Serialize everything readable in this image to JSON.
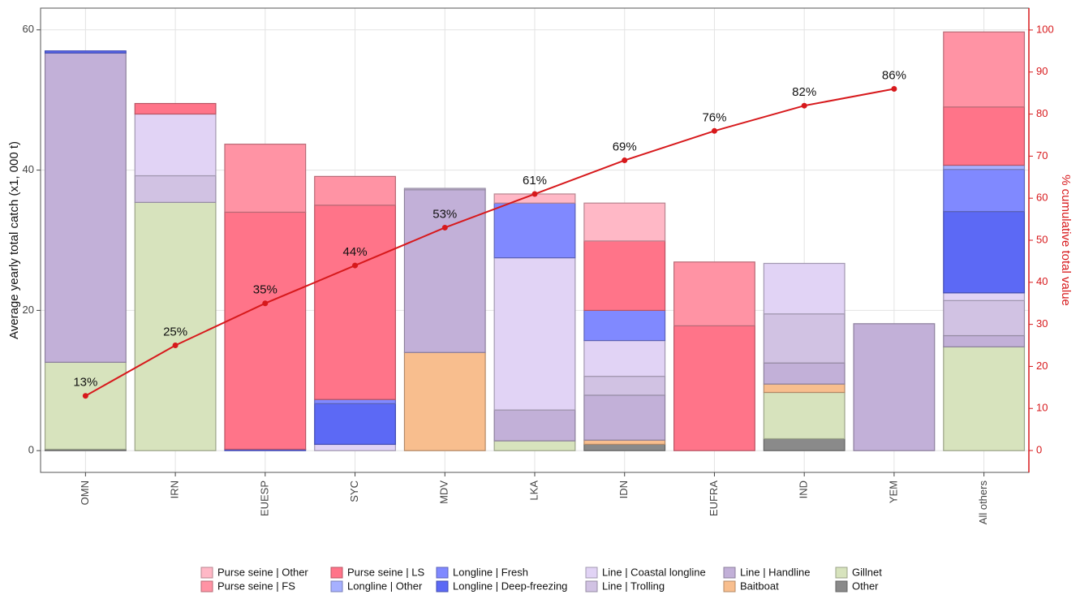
{
  "chart_data": {
    "type": "stacked-bar-line",
    "ylabel": "Average yearly total catch (x1, 000 t)",
    "y2label": "% cumulative total value",
    "categories": [
      "OMN",
      "IRN",
      "EUESP",
      "SYC",
      "MDV",
      "LKA",
      "IDN",
      "EUFRA",
      "IND",
      "YEM",
      "All others"
    ],
    "ylim": [
      -3.1,
      63.1
    ],
    "yticks": [
      0,
      20,
      40,
      60
    ],
    "y2lim": [
      -5.2,
      105.2
    ],
    "y2ticks": [
      0,
      10,
      20,
      30,
      40,
      50,
      60,
      70,
      80,
      90,
      100
    ],
    "grid": true,
    "legend": "bottom",
    "series": [
      {
        "name": "Purse seine | Other",
        "color": "#ffb8c6",
        "values": [
          0,
          0,
          0,
          0,
          0,
          1.3,
          5.4,
          0,
          0,
          0,
          0
        ]
      },
      {
        "name": "Purse seine | FS",
        "color": "#ff93a4",
        "values": [
          0,
          0,
          9.7,
          4.1,
          0,
          0,
          0,
          9.1,
          0,
          0,
          10.7
        ]
      },
      {
        "name": "Purse seine | LS",
        "color": "#ff7489",
        "values": [
          0,
          1.5,
          33.8,
          27.7,
          0,
          0,
          9.9,
          17.8,
          0,
          0,
          8.3
        ]
      },
      {
        "name": "Longline | Other",
        "color": "#a6b0ff",
        "values": [
          0,
          0,
          0,
          0,
          0,
          0,
          0,
          0,
          0,
          0,
          0.6
        ]
      },
      {
        "name": "Longline | Fresh",
        "color": "#8089ff",
        "values": [
          0,
          0,
          0,
          0.6,
          0,
          7.8,
          4.3,
          0,
          0,
          0,
          6.0
        ]
      },
      {
        "name": "Longline | Deep-freezing",
        "color": "#5c69f5",
        "values": [
          0.3,
          0,
          0.2,
          5.8,
          0,
          0,
          0,
          0,
          0,
          0,
          11.6
        ]
      },
      {
        "name": "Line | Coastal longline",
        "color": "#e1d3f5",
        "values": [
          0,
          8.8,
          0,
          0.9,
          0,
          21.7,
          5.1,
          0,
          7.2,
          0,
          1.1
        ]
      },
      {
        "name": "Line | Trolling",
        "color": "#d1c2e3",
        "values": [
          0,
          3.8,
          0,
          0,
          0.2,
          0,
          2.7,
          0,
          7.0,
          0,
          5.0
        ]
      },
      {
        "name": "Line | Handline",
        "color": "#c2b0d8",
        "values": [
          44.1,
          0,
          0,
          0,
          23.2,
          4.4,
          6.4,
          0,
          3.0,
          18.1,
          1.6
        ]
      },
      {
        "name": "Baitboat",
        "color": "#f8be8e",
        "values": [
          0,
          0,
          0,
          0,
          14.0,
          0,
          0.6,
          0,
          1.2,
          0,
          0
        ]
      },
      {
        "name": "Gillnet",
        "color": "#d7e3bd",
        "values": [
          12.4,
          35.4,
          0,
          0,
          0,
          1.4,
          0,
          0,
          6.6,
          0,
          14.8
        ]
      },
      {
        "name": "Other",
        "color": "#8a8a8a",
        "values": [
          0.2,
          0,
          0,
          0,
          0,
          0,
          0.9,
          0,
          1.7,
          0,
          0
        ]
      }
    ],
    "cumulative": {
      "axis": "y2",
      "color": "#d7191c",
      "values": [
        13,
        25,
        35,
        44,
        53,
        61,
        69,
        76,
        82,
        86,
        null
      ],
      "value_labels": [
        "13%",
        "25%",
        "35%",
        "44%",
        "53%",
        "61%",
        "69%",
        "76%",
        "82%",
        "86%",
        null
      ]
    }
  }
}
